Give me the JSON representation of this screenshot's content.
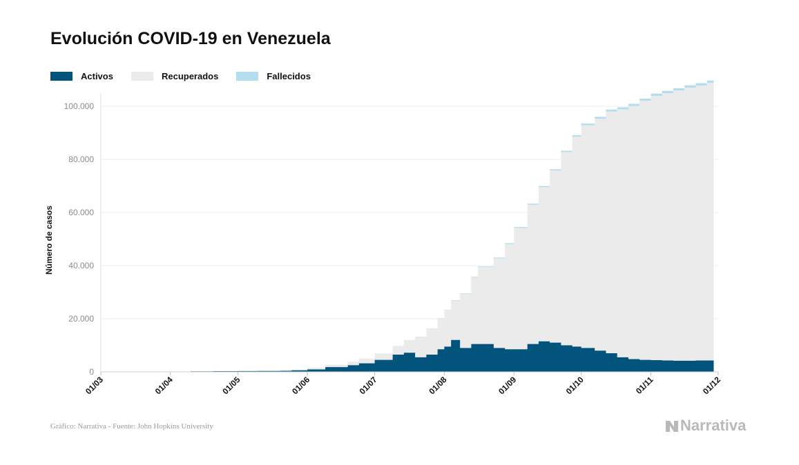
{
  "title": "Evolución COVID-19 en Venezuela",
  "legend": [
    {
      "label": "Activos",
      "color": "#03547c"
    },
    {
      "label": "Recuperados",
      "color": "#ebebeb"
    },
    {
      "label": "Fallecidos",
      "color": "#b4def0"
    }
  ],
  "source": "Gráfico: Narrativa - Fuente: John Hopkins University",
  "logo_text": "Narrativa",
  "chart_data": {
    "type": "area",
    "stacked": true,
    "ylabel": "Número de casos",
    "xlabel": "",
    "ylim": [
      0,
      100000
    ],
    "ytick_values": [
      0,
      20000,
      40000,
      60000,
      80000,
      100000
    ],
    "ytick_labels": [
      "0",
      "20.000",
      "40.000",
      "60.000",
      "80.000",
      "100.000"
    ],
    "xticks": [
      "01/03",
      "01/04",
      "01/05",
      "01/06",
      "01/07",
      "01/08",
      "01/09",
      "01/10",
      "01/11",
      "01/12"
    ],
    "x_day_of_tick": [
      0,
      31,
      61,
      92,
      122,
      153,
      184,
      214,
      245,
      275
    ],
    "grid": true,
    "x": [
      14,
      20,
      31,
      40,
      50,
      61,
      70,
      80,
      85,
      92,
      100,
      110,
      115,
      122,
      130,
      135,
      140,
      145,
      150,
      153,
      156,
      160,
      165,
      168,
      175,
      180,
      184,
      190,
      195,
      200,
      205,
      210,
      214,
      220,
      225,
      230,
      235,
      240,
      245,
      250,
      255,
      260,
      265,
      270
    ],
    "series": [
      {
        "name": "Activos",
        "values": [
          30,
          70,
          130,
          180,
          250,
          300,
          340,
          400,
          600,
          900,
          1800,
          2500,
          3200,
          4500,
          6500,
          7200,
          5500,
          6500,
          8500,
          9500,
          12000,
          9000,
          10500,
          10500,
          9000,
          8500,
          8500,
          10500,
          11500,
          11000,
          10000,
          9500,
          9000,
          8000,
          7000,
          5500,
          4800,
          4500,
          4400,
          4300,
          4200,
          4200,
          4300,
          4300
        ]
      },
      {
        "name": "Recuperados",
        "values": [
          0,
          0,
          10,
          30,
          90,
          120,
          140,
          190,
          280,
          650,
          800,
          1250,
          1700,
          2300,
          3200,
          4700,
          7600,
          9700,
          11500,
          13600,
          14800,
          20300,
          25000,
          28900,
          33700,
          39600,
          45600,
          52400,
          58000,
          64800,
          72700,
          79000,
          83800,
          87300,
          91000,
          93300,
          95300,
          97500,
          99500,
          100600,
          101700,
          102800,
          103500,
          104500
        ]
      },
      {
        "name": "Fallecidos",
        "values": [
          0,
          1,
          5,
          8,
          9,
          10,
          10,
          11,
          15,
          20,
          35,
          45,
          55,
          65,
          80,
          95,
          110,
          130,
          150,
          170,
          190,
          230,
          270,
          300,
          340,
          380,
          410,
          440,
          470,
          510,
          560,
          620,
          680,
          720,
          770,
          820,
          840,
          860,
          860,
          870,
          880,
          885,
          888,
          890
        ]
      }
    ]
  }
}
